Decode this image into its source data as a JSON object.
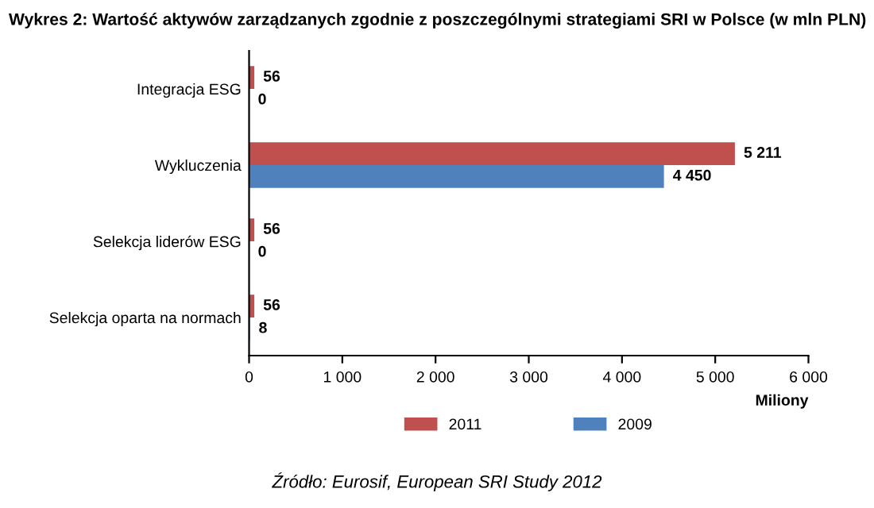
{
  "chart_data": {
    "type": "bar",
    "orientation": "horizontal",
    "title": "Wykres 2: Wartość aktywów zarządzanych zgodnie z poszczególnymi strategiami SRI w Polsce (w mln PLN)",
    "categories": [
      "Integracja ESG",
      "Wykluczenia",
      "Selekcja liderów ESG",
      "Selekcja oparta na normach"
    ],
    "series": [
      {
        "name": "2011",
        "color": "#c0504d",
        "values": [
          56,
          5211,
          56,
          56
        ],
        "value_labels": [
          "56",
          "5 211",
          "56",
          "56"
        ]
      },
      {
        "name": "2009",
        "color": "#4f81bd",
        "values": [
          0,
          4450,
          0,
          8
        ],
        "value_labels": [
          "0",
          "4 450",
          "0",
          "8"
        ]
      }
    ],
    "xlabel": "Miliony",
    "xlim": [
      0,
      6000
    ],
    "xticks": [
      0,
      {
        "value": 1000,
        "label": "1 000"
      },
      {
        "value": 2000,
        "label": "2 000"
      },
      {
        "value": 3000,
        "label": "3 000"
      },
      {
        "value": 4000,
        "label": "4 000"
      },
      {
        "value": 5000,
        "label": "5 000"
      },
      {
        "value": 6000,
        "label": "6 000"
      }
    ],
    "legend": "bottom",
    "grid": false,
    "annotations": [
      "Źródło: Eurosif, European SRI Study 2012"
    ]
  }
}
